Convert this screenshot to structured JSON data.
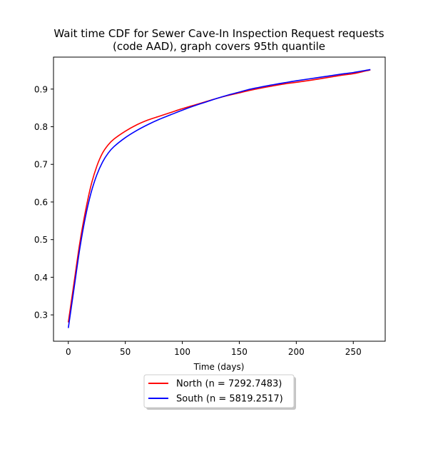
{
  "chart_data": {
    "type": "line",
    "title_lines": [
      "Wait time CDF for Sewer Cave-In Inspection Request  requests",
      "(code AAD), graph covers 95th quantile"
    ],
    "xlabel": "Time (days)",
    "ylabel": "",
    "xlim": [
      -13,
      278
    ],
    "ylim": [
      0.23,
      0.985
    ],
    "xticks": [
      0,
      50,
      100,
      150,
      200,
      250
    ],
    "yticks": [
      0.3,
      0.4,
      0.5,
      0.6,
      0.7,
      0.8,
      0.9
    ],
    "legend_position": "below-center",
    "series": [
      {
        "name": "North (n = 7292.7483)",
        "color": "#ff0000",
        "x": [
          0,
          5,
          10,
          15,
          20,
          25,
          30,
          35,
          40,
          50,
          60,
          70,
          80,
          90,
          100,
          110,
          120,
          130,
          140,
          150,
          160,
          175,
          190,
          200,
          220,
          240,
          250,
          265
        ],
        "y": [
          0.28,
          0.385,
          0.49,
          0.575,
          0.645,
          0.695,
          0.73,
          0.752,
          0.767,
          0.788,
          0.805,
          0.818,
          0.828,
          0.838,
          0.848,
          0.857,
          0.866,
          0.875,
          0.883,
          0.89,
          0.897,
          0.906,
          0.914,
          0.918,
          0.927,
          0.937,
          0.941,
          0.951
        ]
      },
      {
        "name": "South (n = 5819.2517)",
        "color": "#0000ff",
        "x": [
          0,
          5,
          10,
          15,
          20,
          25,
          30,
          35,
          40,
          50,
          60,
          70,
          80,
          90,
          100,
          110,
          120,
          130,
          140,
          150,
          160,
          175,
          190,
          200,
          220,
          240,
          250,
          265
        ],
        "y": [
          0.265,
          0.37,
          0.475,
          0.56,
          0.625,
          0.672,
          0.706,
          0.73,
          0.747,
          0.771,
          0.79,
          0.806,
          0.82,
          0.832,
          0.844,
          0.855,
          0.865,
          0.875,
          0.884,
          0.892,
          0.9,
          0.909,
          0.917,
          0.922,
          0.931,
          0.94,
          0.944,
          0.952
        ]
      }
    ]
  }
}
